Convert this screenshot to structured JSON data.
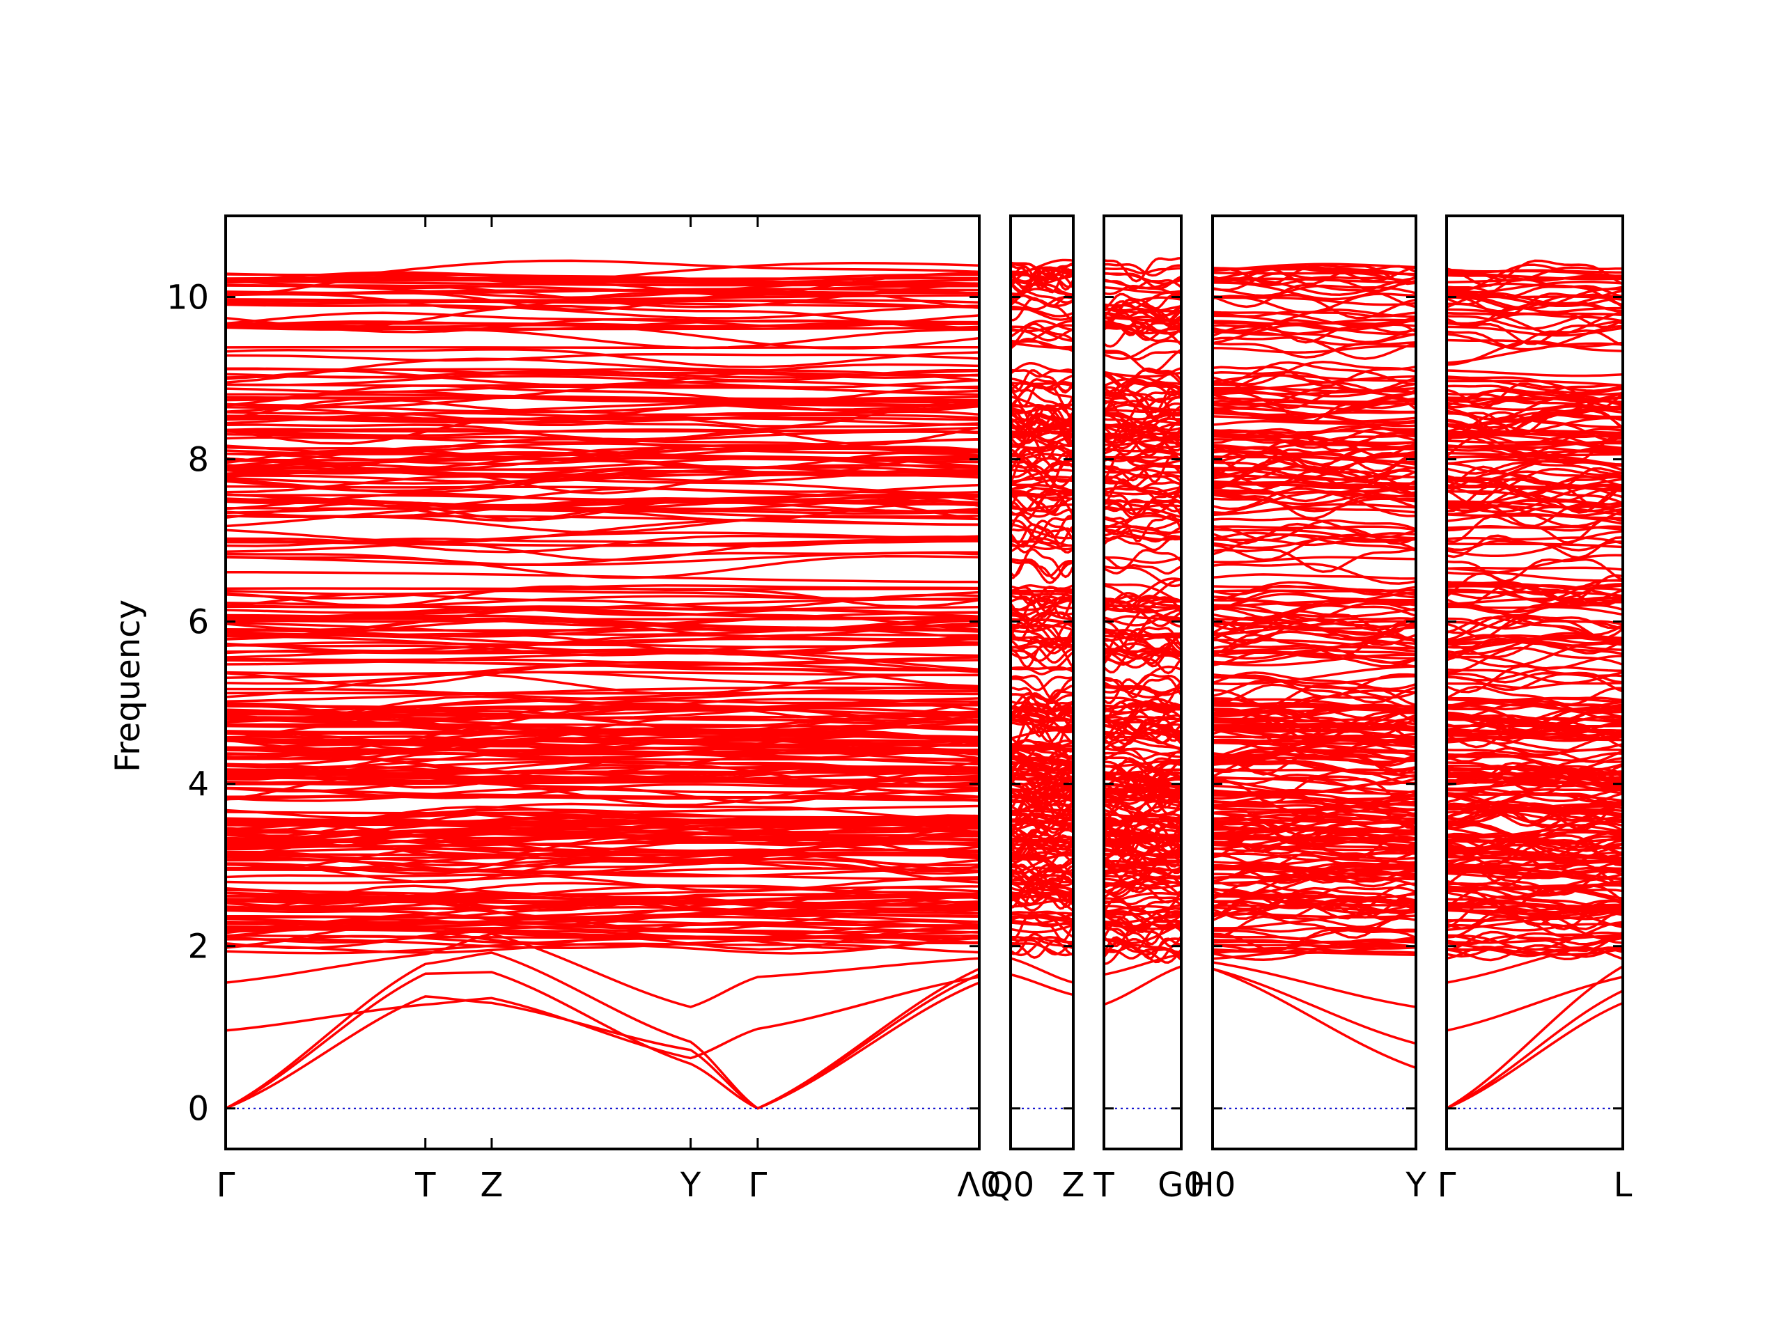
{
  "colors": {
    "band": "#ff0000",
    "zero_line": "#0000cc",
    "axes": "#000000",
    "background": "#ffffff"
  },
  "chart_data": {
    "type": "line",
    "title": "",
    "xlabel": "",
    "ylabel": "Frequency",
    "ylim": [
      -0.5,
      11
    ],
    "yticks": [
      0,
      2,
      4,
      6,
      8,
      10
    ],
    "ytick_labels": [
      "0",
      "2",
      "4",
      "6",
      "8",
      "10"
    ],
    "grid": false,
    "legend": "none",
    "reference_line": {
      "y": 0,
      "style": "dotted"
    },
    "panels": [
      {
        "path_labels": [
          "Γ",
          "T",
          "Z",
          "Y",
          "Γ",
          "Λ0"
        ],
        "x": [
          0,
          0.265,
          0.353,
          0.617,
          0.706,
          1.0
        ],
        "acoustic_bands": [
          [
            0,
            1.38,
            1.3,
            0.72,
            0,
            1.65
          ],
          [
            0,
            1.66,
            1.68,
            0.55,
            0,
            1.55
          ],
          [
            0,
            1.78,
            1.92,
            0.82,
            0,
            1.72
          ]
        ],
        "sample_optical_bands": [
          [
            0.96,
            1.28,
            1.36,
            0.62,
            0.98,
            1.62
          ],
          [
            1.55,
            1.9,
            2.15,
            1.25,
            1.62,
            1.85
          ],
          [
            2.2,
            2.4,
            2.35,
            2.45,
            2.4,
            2.3
          ]
        ]
      },
      {
        "path_labels": [
          "Q0",
          "Z"
        ],
        "x": [
          0,
          1.0
        ],
        "sample_bands": [
          [
            1.65,
            1.4
          ],
          [
            1.85,
            1.55
          ],
          [
            2.4,
            2.3
          ]
        ]
      },
      {
        "path_labels": [
          "T",
          "G0"
        ],
        "x": [
          0,
          1.0
        ],
        "sample_bands": [
          [
            1.28,
            1.75
          ],
          [
            1.65,
            1.9
          ],
          [
            2.25,
            2.4
          ]
        ]
      },
      {
        "path_labels": [
          "H0",
          "Y"
        ],
        "x": [
          0,
          1.0
        ],
        "sample_bands": [
          [
            1.72,
            0.5
          ],
          [
            1.72,
            0.8
          ],
          [
            1.8,
            1.25
          ],
          [
            2.2,
            2.45
          ]
        ]
      },
      {
        "path_labels": [
          "Γ",
          "L"
        ],
        "x": [
          0,
          1.0
        ],
        "acoustic_bands": [
          [
            0,
            1.3
          ],
          [
            0,
            1.45
          ],
          [
            0,
            1.75
          ]
        ],
        "sample_optical_bands": [
          [
            0.96,
            1.62
          ],
          [
            1.55,
            2.1
          ],
          [
            2.2,
            2.45
          ]
        ]
      }
    ]
  }
}
